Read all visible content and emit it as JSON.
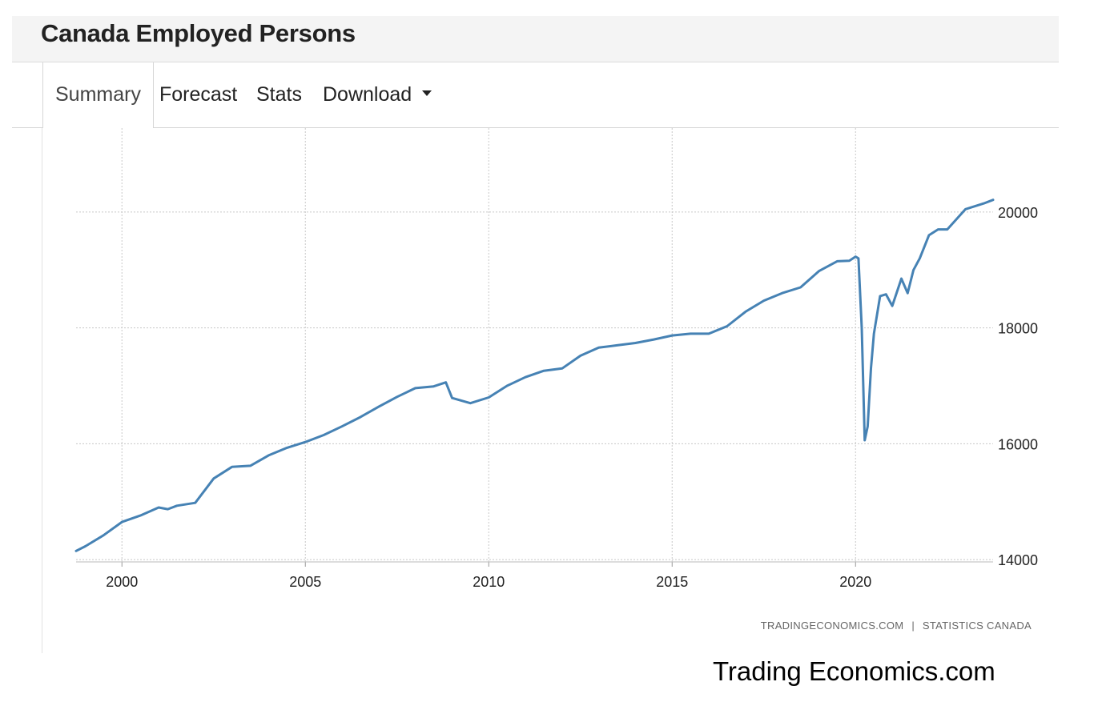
{
  "header": {
    "title": "Canada Employed Persons"
  },
  "tabs": [
    {
      "label": "Summary"
    },
    {
      "label": "Forecast"
    },
    {
      "label": "Stats"
    },
    {
      "label": "Download"
    }
  ],
  "colors": {
    "series": "#4682b4",
    "grid": "#c8c8c8",
    "header_bg": "#f4f4f4"
  },
  "icons": {
    "download_dropdown": "caret-down-icon"
  },
  "source": {
    "left": "TRADINGECONOMICS.COM",
    "separator": "|",
    "right": "STATISTICS CANADA"
  },
  "footer": {
    "brand": "Trading Economics.com"
  },
  "chart_data": {
    "type": "line",
    "title": "",
    "xlabel": "",
    "ylabel": "",
    "xlim": [
      1998.75,
      2023.75
    ],
    "ylim": [
      13960,
      21450
    ],
    "x_ticks": [
      2000,
      2005,
      2010,
      2015,
      2020
    ],
    "y_ticks": [
      14000,
      16000,
      18000,
      20000
    ],
    "y_axis_side": "right",
    "grid": "dotted",
    "legend": "none",
    "series": [
      {
        "x": [
          1998.75,
          1999.0,
          1999.5,
          2000.0,
          2000.5,
          2001.0,
          2001.25,
          2001.5,
          2002.0,
          2002.5,
          2003.0,
          2003.5,
          2004.0,
          2004.5,
          2005.0,
          2005.5,
          2006.0,
          2006.5,
          2007.0,
          2007.5,
          2008.0,
          2008.5,
          2008.83,
          2009.0,
          2009.5,
          2010.0,
          2010.5,
          2011.0,
          2011.5,
          2012.0,
          2012.5,
          2013.0,
          2013.5,
          2014.0,
          2014.5,
          2015.0,
          2015.5,
          2016.0,
          2016.5,
          2017.0,
          2017.5,
          2018.0,
          2018.5,
          2019.0,
          2019.5,
          2019.83,
          2020.0,
          2020.08,
          2020.17,
          2020.25,
          2020.33,
          2020.42,
          2020.5,
          2020.67,
          2020.83,
          2021.0,
          2021.25,
          2021.42,
          2021.58,
          2021.75,
          2022.0,
          2022.25,
          2022.5,
          2023.0,
          2023.5,
          2023.75
        ],
        "values": [
          14150,
          14230,
          14420,
          14650,
          14760,
          14900,
          14870,
          14930,
          14980,
          15400,
          15600,
          15620,
          15800,
          15930,
          16030,
          16150,
          16300,
          16460,
          16640,
          16810,
          16960,
          16990,
          17060,
          16790,
          16700,
          16800,
          17000,
          17150,
          17260,
          17300,
          17520,
          17660,
          17700,
          17740,
          17800,
          17870,
          17900,
          17900,
          18030,
          18280,
          18470,
          18600,
          18700,
          18980,
          19150,
          19160,
          19230,
          19200,
          18000,
          16060,
          16300,
          17300,
          17900,
          18550,
          18580,
          18380,
          18850,
          18600,
          19000,
          19200,
          19600,
          19700,
          19700,
          20050,
          20150,
          20210
        ]
      }
    ]
  }
}
